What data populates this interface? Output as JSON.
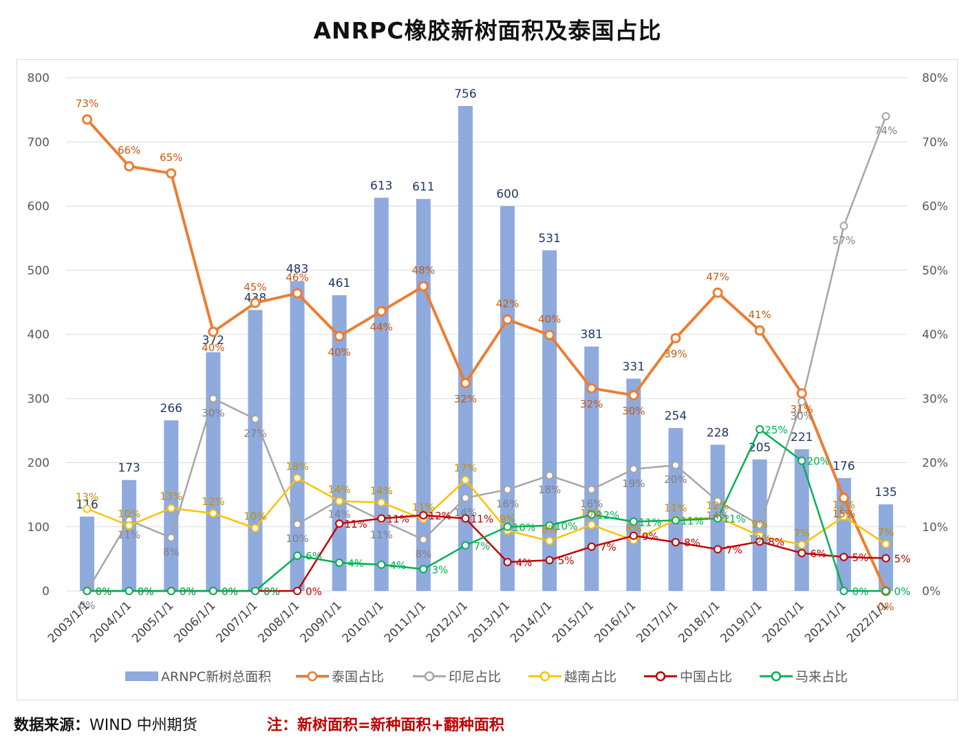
{
  "title": "ANRPC橡胶新树面积及泰国占比",
  "footer": {
    "source_label": "数据来源：",
    "source_value": "WIND  中州期货",
    "note": "注：新树面积=新种面积+翻种面积"
  },
  "chart_data": {
    "type": "bar+line",
    "categories": [
      "2003/1/1",
      "2004/1/1",
      "2005/1/1",
      "2006/1/1",
      "2007/1/1",
      "2008/1/1",
      "2009/1/1",
      "2010/1/1",
      "2011/1/1",
      "2012/1/1",
      "2013/1/1",
      "2014/1/1",
      "2015/1/1",
      "2016/1/1",
      "2017/1/1",
      "2018/1/1",
      "2019/1/1",
      "2020/1/1",
      "2021/1/1",
      "2022/1/1"
    ],
    "y_left": {
      "min": 0,
      "max": 800,
      "step": 100,
      "ticks": [
        "0",
        "100",
        "200",
        "300",
        "400",
        "500",
        "600",
        "700",
        "800"
      ]
    },
    "y_right": {
      "min": 0,
      "max": 80,
      "step": 10,
      "ticks": [
        "0%",
        "10%",
        "20%",
        "30%",
        "40%",
        "50%",
        "60%",
        "70%",
        "80%"
      ]
    },
    "grid": true,
    "legend_position": "bottom",
    "bar_series": {
      "name": "ARNPC新树总面积",
      "color": "#8faadc",
      "label_color": "#1f3864",
      "values": [
        116,
        173,
        266,
        372,
        438,
        483,
        461,
        613,
        611,
        756,
        600,
        531,
        381,
        331,
        254,
        228,
        205,
        221,
        176,
        135
      ]
    },
    "line_series": [
      {
        "name": "泰国占比",
        "color": "#ed7d31",
        "label_color": "#c55a11",
        "values": [
          73.5,
          66.2,
          65.1,
          40.4,
          44.9,
          46.4,
          39.7,
          43.6,
          47.5,
          32.4,
          42.3,
          39.9,
          31.6,
          30.5,
          39.4,
          46.5,
          40.6,
          30.8,
          14.5,
          0
        ],
        "labels": [
          "73%",
          "66%",
          "65%",
          "40%",
          "45%",
          "46%",
          "40%",
          "44%",
          "48%",
          "32%",
          "42%",
          "40%",
          "32%",
          "30%",
          "39%",
          "47%",
          "41%",
          "31%",
          "15%",
          "0%"
        ]
      },
      {
        "name": "印尼占比",
        "color": "#a5a5a5",
        "label_color": "#808080",
        "values": [
          0,
          11.0,
          8.3,
          30.0,
          26.8,
          10.4,
          14.2,
          11.0,
          8.0,
          14.5,
          15.8,
          18.0,
          15.8,
          19.0,
          19.6,
          14.0,
          10.3,
          29.5,
          56.9,
          74.0
        ],
        "labels": [
          "0%",
          "11%",
          "8%",
          "30%",
          "27%",
          "10%",
          "14%",
          "11%",
          "8%",
          "14%",
          "16%",
          "18%",
          "16%",
          "19%",
          "20%",
          "14%",
          "10%",
          "30%",
          "57%",
          "74%"
        ]
      },
      {
        "name": "越南占比",
        "color": "#ffc000",
        "label_color": "#bf9000",
        "values": [
          12.8,
          10.2,
          12.9,
          12.1,
          9.8,
          17.6,
          14.0,
          13.8,
          11.2,
          17.3,
          9.4,
          7.8,
          10.3,
          7.9,
          11.1,
          11.5,
          8.6,
          7.2,
          11.6,
          7.3
        ],
        "labels": [
          "13%",
          "10%",
          "13%",
          "12%",
          "10%",
          "18%",
          "14%",
          "14%",
          "11%",
          "17%",
          "9%",
          "8%",
          "10%",
          "8%",
          "11%",
          "12%",
          "9%",
          "7%",
          "12%",
          "7%"
        ]
      },
      {
        "name": "中国占比",
        "color": "#c00000",
        "label_color": "#c00000",
        "values": [
          0,
          0,
          0,
          0,
          0,
          0,
          10.5,
          11.3,
          11.8,
          11.3,
          4.5,
          4.8,
          6.9,
          8.6,
          7.6,
          6.5,
          7.7,
          5.9,
          5.3,
          5.1
        ],
        "labels": [
          "0%",
          "0%",
          "0%",
          "0%",
          "0%",
          "0%",
          "11%",
          "11%",
          "12%",
          "11%",
          "4%",
          "5%",
          "7%",
          "9%",
          "8%",
          "7%",
          "8%",
          "6%",
          "5%",
          "5%"
        ]
      },
      {
        "name": "马来占比",
        "color": "#00b050",
        "label_color": "#00b050",
        "values": [
          0,
          0,
          0,
          0,
          0,
          5.5,
          4.4,
          4.1,
          3.4,
          7.1,
          10.0,
          10.2,
          11.9,
          10.8,
          11.0,
          11.3,
          25.2,
          20.3,
          0,
          0
        ],
        "labels": [
          "0%",
          "0%",
          "0%",
          "0%",
          "0%",
          "6%",
          "4%",
          "4%",
          "3%",
          "7%",
          "10%",
          "10%",
          "12%",
          "11%",
          "11%",
          "11%",
          "25%",
          "20%",
          "0%",
          "0%"
        ]
      }
    ]
  }
}
